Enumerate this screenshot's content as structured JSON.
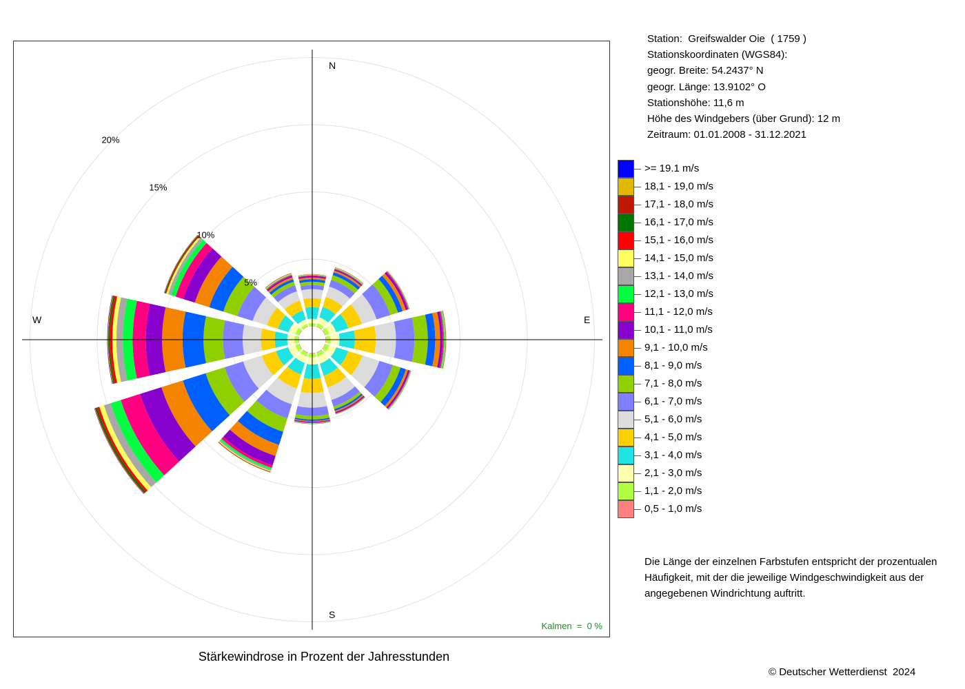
{
  "station": {
    "line1": "Station:  Greifswalder Oie  ( 1759 )",
    "line2": "Stationskoordinaten (WGS84):",
    "line3": "geogr. Breite: 54.2437° N",
    "line4": "geogr. Länge: 13.9102° O",
    "line5": "Stationshöhe: 11,6 m",
    "line6": "Höhe des Windgebers (über Grund): 12 m",
    "line7": "Zeitraum: 01.01.2008 - 31.12.2021"
  },
  "note": "Die Länge der einzelnen Farbstufen entspricht der prozentualen Häufigkeit, mit der die jeweilige Windgeschwindigkeit aus der angegebenen Windrichtung auftritt.",
  "copyright": "© Deutscher Wetterdienst  2024",
  "legend": [
    {
      "label": ">= 19.1 m/s",
      "color": "#0000ff"
    },
    {
      "label": "18,1 - 19,0 m/s",
      "color": "#e0b800"
    },
    {
      "label": "17,1 - 18,0 m/s",
      "color": "#c01800"
    },
    {
      "label": "16,1 - 17,0 m/s",
      "color": "#007800"
    },
    {
      "label": "15,1 - 16,0 m/s",
      "color": "#ff0000"
    },
    {
      "label": "14,1 - 15,0 m/s",
      "color": "#ffff60"
    },
    {
      "label": "13,1 - 14,0 m/s",
      "color": "#a8a8a8"
    },
    {
      "label": "12,1 - 13,0 m/s",
      "color": "#00ff40"
    },
    {
      "label": "11,1 - 12,0 m/s",
      "color": "#ff0080"
    },
    {
      "label": "10,1 - 11,0 m/s",
      "color": "#8800cc"
    },
    {
      "label": "9,1 - 10,0 m/s",
      "color": "#f48400"
    },
    {
      "label": "8,1 - 9,0 m/s",
      "color": "#0060ff"
    },
    {
      "label": "7,1 - 8,0 m/s",
      "color": "#90d000"
    },
    {
      "label": "6,1 - 7,0 m/s",
      "color": "#8080ff"
    },
    {
      "label": "5,1 - 6,0 m/s",
      "color": "#dcdcdc"
    },
    {
      "label": "4,1 - 5,0 m/s",
      "color": "#ffd000"
    },
    {
      "label": "3,1 - 4,0 m/s",
      "color": "#20e4e4"
    },
    {
      "label": "2,1 - 3,0 m/s",
      "color": "#ffffb0"
    },
    {
      "label": "1,1 - 2,0 m/s",
      "color": "#b0ff40"
    },
    {
      "label": "0,5 - 1,0 m/s",
      "color": "#ff8080"
    }
  ],
  "chart_data": {
    "type": "windrose",
    "title": "Stärkewindrose in Prozent der Jahresstunden",
    "calm_label": "Kalmen  =  0 %",
    "directions": [
      "N",
      "E",
      "S",
      "W"
    ],
    "rings": [
      {
        "value": 5,
        "label": "5%"
      },
      {
        "value": 10,
        "label": "10%"
      },
      {
        "value": 15,
        "label": "15%"
      },
      {
        "value": 20,
        "label": "20%"
      }
    ],
    "inner_offset_percent": 1.0,
    "sector_width_deg": 25,
    "bins": [
      "0,5 - 1,0 m/s",
      "1,1 - 2,0 m/s",
      "2,1 - 3,0 m/s",
      "3,1 - 4,0 m/s",
      "4,1 - 5,0 m/s",
      "5,1 - 6,0 m/s",
      "6,1 - 7,0 m/s",
      "7,1 - 8,0 m/s",
      "8,1 - 9,0 m/s",
      "9,1 - 10,0 m/s",
      "10,1 - 11,0 m/s",
      "11,1 - 12,0 m/s",
      "12,1 - 13,0 m/s",
      "13,1 - 14,0 m/s",
      "14,1 - 15,0 m/s",
      "15,1 - 16,0 m/s",
      "16,1 - 17,0 m/s",
      "17,1 - 18,0 m/s",
      "18,1 - 19,0 m/s",
      ">= 19.1 m/s"
    ],
    "sectors": [
      {
        "dir_deg": 0,
        "values": [
          0.03,
          0.2,
          0.33,
          0.86,
          0.67,
          0.68,
          0.3,
          0.24,
          0.18,
          0.14,
          0.09,
          0.06,
          0.03,
          0.02,
          0.02,
          0.01,
          0.01,
          0.01,
          0.01,
          0.0
        ]
      },
      {
        "dir_deg": 30,
        "values": [
          0.04,
          0.25,
          0.45,
          0.82,
          0.78,
          0.81,
          0.52,
          0.37,
          0.23,
          0.13,
          0.08,
          0.05,
          0.04,
          0.03,
          0.02,
          0.01,
          0.01,
          0.01,
          0.01,
          0.0
        ]
      },
      {
        "dir_deg": 60,
        "values": [
          0.04,
          0.3,
          0.52,
          0.96,
          1.06,
          1.14,
          1.07,
          0.6,
          0.36,
          0.26,
          0.13,
          0.08,
          0.03,
          0.02,
          0.01,
          0.01,
          0.01,
          0.0,
          0.0,
          0.0
        ]
      },
      {
        "dir_deg": 90,
        "values": [
          0.04,
          0.32,
          0.67,
          1.15,
          1.55,
          1.5,
          1.37,
          1.0,
          0.55,
          0.37,
          0.16,
          0.1,
          0.08,
          0.04,
          0.02,
          0.02,
          0.01,
          0.01,
          0.01,
          0.0
        ]
      },
      {
        "dir_deg": 120,
        "values": [
          0.04,
          0.3,
          0.53,
          0.94,
          1.1,
          1.33,
          1.05,
          0.6,
          0.42,
          0.17,
          0.1,
          0.06,
          0.04,
          0.02,
          0.01,
          0.01,
          0.01,
          0.0,
          0.0,
          0.0
        ]
      },
      {
        "dir_deg": 150,
        "values": [
          0.04,
          0.29,
          0.54,
          0.95,
          0.92,
          0.97,
          0.52,
          0.2,
          0.13,
          0.1,
          0.07,
          0.05,
          0.03,
          0.02,
          0.01,
          0.01,
          0.0,
          0.0,
          0.0,
          0.0
        ]
      },
      {
        "dir_deg": 180,
        "values": [
          0.04,
          0.28,
          0.53,
          1.06,
          1.06,
          1.09,
          0.61,
          0.27,
          0.11,
          0.06,
          0.05,
          0.04,
          0.03,
          0.02,
          0.01,
          0.01,
          0.01,
          0.0,
          0.0,
          0.0
        ]
      },
      {
        "dir_deg": 210,
        "values": [
          0.04,
          0.28,
          0.5,
          0.9,
          1.09,
          1.24,
          1.1,
          1.04,
          1.02,
          0.87,
          0.72,
          0.2,
          0.14,
          0.1,
          0.06,
          0.03,
          0.02,
          0.01,
          0.01,
          0.0
        ]
      },
      {
        "dir_deg": 240,
        "values": [
          0.04,
          0.3,
          0.54,
          0.95,
          1.1,
          1.46,
          1.45,
          1.48,
          1.78,
          1.67,
          1.66,
          1.51,
          0.79,
          0.52,
          0.36,
          0.17,
          0.12,
          0.06,
          0.03,
          0.02
        ]
      },
      {
        "dir_deg": 270,
        "values": [
          0.04,
          0.29,
          0.53,
          0.93,
          1.03,
          1.36,
          1.46,
          1.45,
          1.56,
          1.52,
          1.21,
          0.98,
          0.73,
          0.48,
          0.3,
          0.17,
          0.09,
          0.05,
          0.04,
          0.03
        ]
      },
      {
        "dir_deg": 300,
        "values": [
          0.04,
          0.3,
          0.5,
          0.84,
          0.86,
          1.11,
          1.19,
          1.1,
          1.1,
          1.12,
          0.9,
          0.6,
          0.36,
          0.23,
          0.14,
          0.07,
          0.05,
          0.03,
          0.02,
          0.01
        ]
      },
      {
        "dir_deg": 330,
        "values": [
          0.03,
          0.2,
          0.35,
          0.7,
          0.78,
          0.72,
          0.47,
          0.28,
          0.19,
          0.15,
          0.1,
          0.07,
          0.05,
          0.04,
          0.03,
          0.02,
          0.01,
          0.01,
          0.01,
          0.0
        ]
      }
    ]
  }
}
